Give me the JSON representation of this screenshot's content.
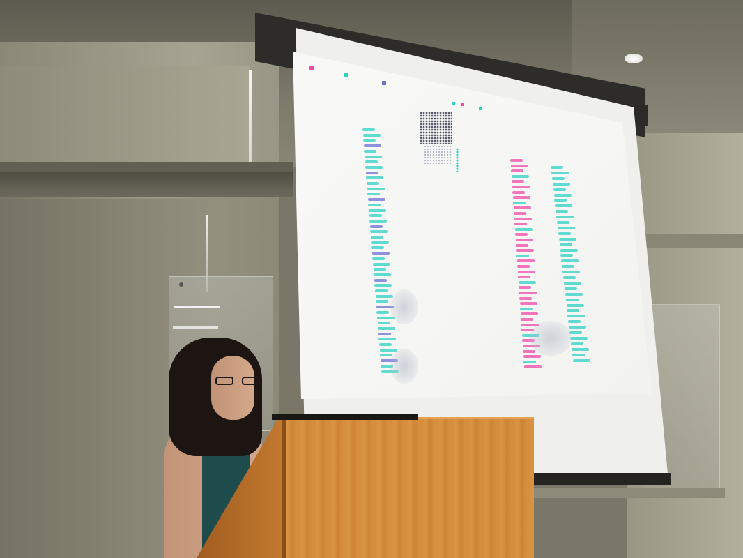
{
  "scene": {
    "description_type": "photo",
    "accent_colors": {
      "slide_magenta": "#f14aa8",
      "slide_teal": "#2ed1c4",
      "slide_blue": "#6a6fd6",
      "podium": "#d38c3b",
      "presenter_top": "#1e4b4c"
    }
  },
  "slide": {
    "left_heading": "",
    "right_heading": "",
    "legend_markers": [
      "magenta-marker",
      "teal-marker",
      "blue-marker"
    ]
  }
}
